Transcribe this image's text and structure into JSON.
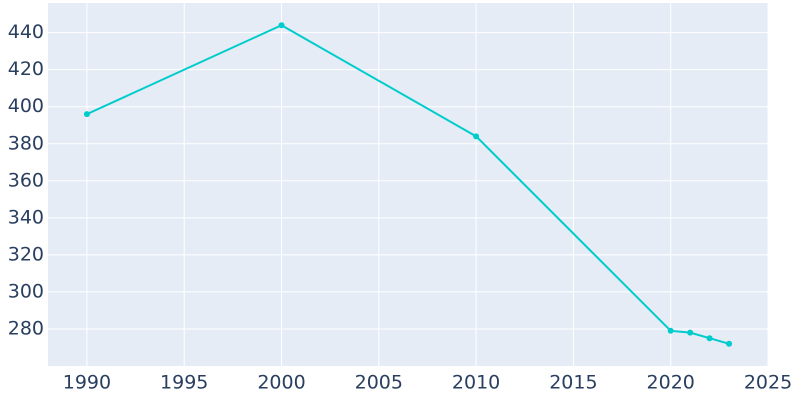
{
  "chart_data": {
    "type": "line",
    "x": [
      1990,
      2000,
      2010,
      2020,
      2021,
      2022,
      2023
    ],
    "series": [
      {
        "color": "#00cccc",
        "values": [
          396,
          444,
          384,
          279,
          278,
          275,
          272
        ]
      }
    ],
    "xlim": [
      1988,
      2025
    ],
    "xticks": [
      1990,
      1995,
      2000,
      2005,
      2010,
      2015,
      2020,
      2025
    ],
    "ylim": [
      260,
      456
    ],
    "yticks": [
      280,
      300,
      320,
      340,
      360,
      380,
      400,
      420,
      440
    ],
    "grid": true
  }
}
